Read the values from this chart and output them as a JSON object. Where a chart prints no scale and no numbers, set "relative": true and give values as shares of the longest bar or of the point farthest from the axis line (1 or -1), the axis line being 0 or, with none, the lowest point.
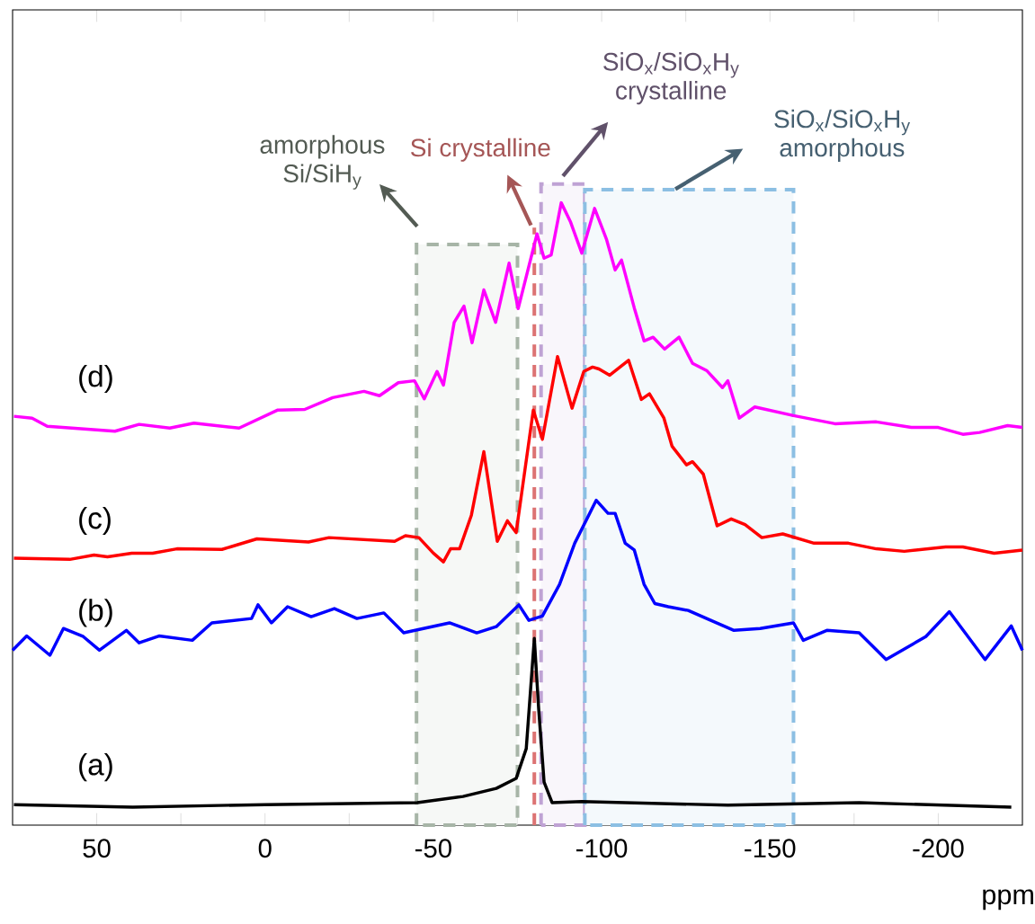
{
  "chart_data": {
    "type": "line",
    "relative": true,
    "xlabel": "ppm",
    "xlim": [
      75,
      -225
    ],
    "xticks": [
      50,
      {
        "value": 25,
        "label": null
      },
      0,
      {
        "value": -25,
        "label": null
      },
      -50,
      {
        "value": -75,
        "label": null
      },
      -100,
      {
        "value": -125,
        "label": null
      },
      -150,
      {
        "value": -175,
        "label": null
      },
      -200
    ],
    "series": [
      {
        "name": "(a)",
        "color": "#000000",
        "x": [
          74.6,
          39.3,
          0.0,
          -45.2,
          -58.8,
          -68.7,
          -74.6,
          -77.6,
          -80.0,
          -81.3,
          -82.9,
          -85.3,
          -94.1,
          -137.5,
          -176.5,
          -221.7
        ],
        "values": [
          0.033,
          0.029,
          0.033,
          0.036,
          0.046,
          0.059,
          0.075,
          0.123,
          0.3,
          0.186,
          0.069,
          0.036,
          0.038,
          0.032,
          0.036,
          0.029
        ]
      },
      {
        "name": "(b)",
        "color": "#0000ff",
        "x": [
          75,
          70.8,
          63.9,
          59.9,
          54.0,
          49.2,
          41.2,
          37.4,
          31.5,
          21.6,
          15.8,
          4.0,
          2.1,
          -1.9,
          -6.7,
          -13.7,
          -20.6,
          -27.3,
          -35.3,
          -41.2,
          -54.8,
          -62.9,
          -68.7,
          -75.4,
          -78.4,
          -82.4,
          -87.5,
          -92.0,
          -98.4,
          -101.9,
          -104.0,
          -107.0,
          -109.7,
          -112.6,
          -115.8,
          -119.8,
          -125.7,
          -132.4,
          -139.3,
          -147.1,
          -157.0,
          -159.9,
          -166.9,
          -176.5,
          -184.5,
          -196.3,
          -203.3,
          -213.9,
          -221.7,
          -225
        ],
        "values": [
          0.281,
          0.304,
          0.273,
          0.316,
          0.303,
          0.281,
          0.313,
          0.293,
          0.304,
          0.297,
          0.325,
          0.332,
          0.354,
          0.325,
          0.351,
          0.335,
          0.348,
          0.332,
          0.341,
          0.309,
          0.325,
          0.309,
          0.319,
          0.354,
          0.329,
          0.336,
          0.387,
          0.453,
          0.522,
          0.501,
          0.501,
          0.453,
          0.442,
          0.387,
          0.356,
          0.351,
          0.345,
          0.329,
          0.313,
          0.316,
          0.325,
          0.297,
          0.313,
          0.309,
          0.266,
          0.303,
          0.343,
          0.266,
          0.32,
          0.281
        ]
      },
      {
        "name": "(c)",
        "color": "#ff0000",
        "x": [
          74.6,
          58.0,
          50.8,
          46.8,
          39.6,
          33.4,
          26.2,
          12.8,
          2.4,
          -12.9,
          -19.0,
          -38.5,
          -41.7,
          -45.7,
          -50.0,
          -53.0,
          -55.1,
          -57.8,
          -61.3,
          -65.0,
          -69.0,
          -72.0,
          -74.6,
          -79.7,
          -82.4,
          -86.9,
          -91.2,
          -94.7,
          -97.3,
          -99.2,
          -102.4,
          -108.0,
          -111.8,
          -114.2,
          -118.5,
          -120.9,
          -125.2,
          -127.0,
          -130.2,
          -134.3,
          -138.5,
          -142.6,
          -147.6,
          -153.8,
          -163.1,
          -173.3,
          -181.6,
          -189.9,
          -202.2,
          -207.3,
          -216.6,
          -225
        ],
        "values": [
          0.429,
          0.427,
          0.434,
          0.431,
          0.437,
          0.437,
          0.444,
          0.443,
          0.46,
          0.455,
          0.462,
          0.456,
          0.465,
          0.462,
          0.437,
          0.423,
          0.444,
          0.444,
          0.498,
          0.6,
          0.456,
          0.489,
          0.47,
          0.667,
          0.62,
          0.753,
          0.67,
          0.729,
          0.736,
          0.733,
          0.723,
          0.747,
          0.684,
          0.693,
          0.654,
          0.609,
          0.579,
          0.584,
          0.564,
          0.481,
          0.492,
          0.483,
          0.462,
          0.468,
          0.453,
          0.453,
          0.444,
          0.44,
          0.447,
          0.447,
          0.437,
          0.442
        ]
      },
      {
        "name": "(d)",
        "color": "#ff00ff",
        "x": [
          74.6,
          69.2,
          64.7,
          44.6,
          37.4,
          28.3,
          21.1,
          7.7,
          -3.8,
          -11.8,
          -20.1,
          -29.4,
          -34.0,
          -39.6,
          -44.4,
          -47.3,
          -51.1,
          -53.0,
          -56.2,
          -59.1,
          -61.5,
          -65.0,
          -68.5,
          -72.5,
          -75.2,
          -80.8,
          -82.9,
          -85.0,
          -88.0,
          -90.7,
          -94.1,
          -97.9,
          -101.4,
          -104.0,
          -105.9,
          -109.7,
          -112.6,
          -115.3,
          -118.7,
          -123.0,
          -127.0,
          -131.3,
          -135.9,
          -137.5,
          -140.9,
          -145.5,
          -157.0,
          -169.3,
          -181.6,
          -192.0,
          -200.0,
          -207.3,
          -212.3,
          -220.6,
          -225
        ],
        "values": [
          0.657,
          0.654,
          0.641,
          0.633,
          0.644,
          0.638,
          0.646,
          0.638,
          0.667,
          0.668,
          0.687,
          0.697,
          0.69,
          0.711,
          0.714,
          0.685,
          0.729,
          0.707,
          0.808,
          0.834,
          0.775,
          0.86,
          0.808,
          0.903,
          0.83,
          0.95,
          0.911,
          0.916,
          1.0,
          0.97,
          0.919,
          0.991,
          0.942,
          0.892,
          0.908,
          0.831,
          0.778,
          0.784,
          0.765,
          0.784,
          0.742,
          0.73,
          0.703,
          0.714,
          0.654,
          0.672,
          0.658,
          0.645,
          0.648,
          0.639,
          0.639,
          0.628,
          0.631,
          0.642,
          0.639
        ]
      }
    ],
    "bands": [
      {
        "axis": "x",
        "from": -45,
        "to": -75,
        "label": "amorphous Si/SiH$_{y}$",
        "color": "#a7b5a7"
      },
      {
        "axis": "x",
        "from": -82,
        "to": -95,
        "label": "SiO$_{x}$/SiO$_{x}$H$_{y}$ crystalline",
        "color": "#bfa2d4"
      },
      {
        "axis": "x",
        "from": -95,
        "to": -157,
        "label": "SiO$_{x}$/SiO$_{x}$H$_{y}$ amorphous",
        "color": "#8cbfe3"
      }
    ],
    "ref_lines": [
      {
        "axis": "x",
        "value": -80,
        "label": "Si crystalline",
        "color": "#dc7373",
        "line_style": "dashed"
      }
    ]
  }
}
